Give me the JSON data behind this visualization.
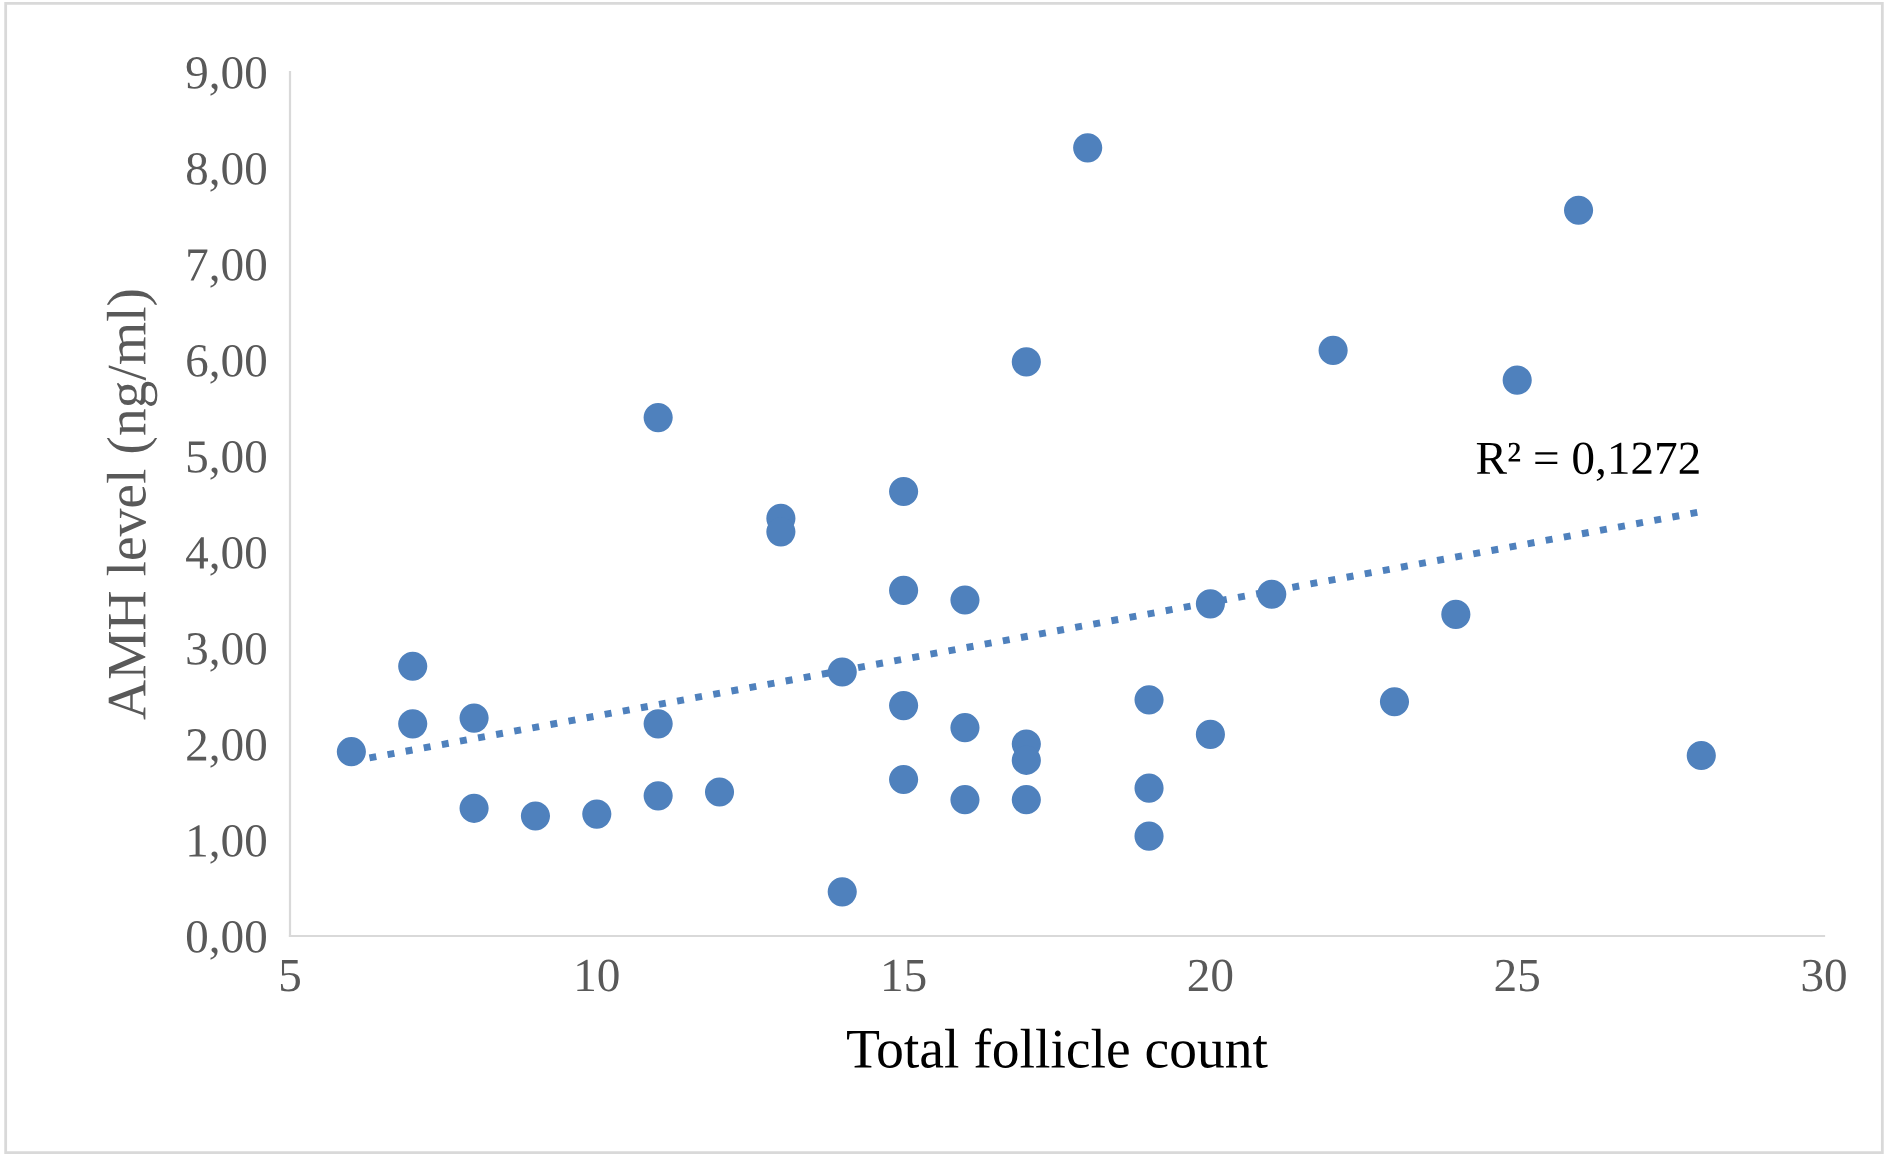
{
  "chart_data": {
    "type": "scatter",
    "xlabel": "Total follicle count",
    "ylabel": "AMH level (ng/ml)",
    "series": [
      {
        "color": "#4f81bd",
        "marker": "circle",
        "x": [
          6,
          7,
          7,
          8,
          8,
          9,
          10,
          11,
          11,
          11,
          12,
          13,
          13,
          14,
          14,
          15,
          15,
          15,
          15,
          16,
          16,
          16,
          17,
          17,
          17,
          17,
          18,
          19,
          19,
          19,
          20,
          20,
          21,
          22,
          23,
          24,
          25,
          26,
          28
        ],
        "values": [
          1.92,
          2.81,
          2.21,
          2.27,
          1.33,
          1.25,
          1.27,
          5.4,
          2.21,
          1.46,
          1.5,
          4.35,
          4.21,
          2.75,
          0.46,
          4.63,
          3.6,
          2.4,
          1.63,
          3.5,
          2.17,
          1.42,
          5.98,
          2.0,
          1.83,
          1.42,
          8.21,
          2.46,
          1.54,
          1.04,
          3.46,
          2.1,
          3.56,
          6.1,
          2.44,
          3.35,
          5.79,
          7.56,
          1.88
        ]
      },
      {
        "type": "line",
        "color": "#4f81bd",
        "line_style": "dotted",
        "marker": "none",
        "x": [
          6,
          28
        ],
        "values": [
          1.82,
          4.42
        ]
      }
    ],
    "annotations": [
      {
        "text": "R² = 0,1272",
        "x": 28,
        "y": 4.42
      }
    ],
    "xlim": [
      5,
      30
    ],
    "xticks": [
      5,
      10,
      15,
      20,
      25,
      30
    ],
    "ylim": [
      0,
      9
    ],
    "yticks": [
      {
        "value": 0,
        "label": "0,00"
      },
      {
        "value": 1,
        "label": "1,00"
      },
      {
        "value": 2,
        "label": "2,00"
      },
      {
        "value": 3,
        "label": "3,00"
      },
      {
        "value": 4,
        "label": "4,00"
      },
      {
        "value": 5,
        "label": "5,00"
      },
      {
        "value": 6,
        "label": "6,00"
      },
      {
        "value": 7,
        "label": "7,00"
      },
      {
        "value": 8,
        "label": "8,00"
      },
      {
        "value": 9,
        "label": "9,00"
      }
    ],
    "grid": false
  }
}
